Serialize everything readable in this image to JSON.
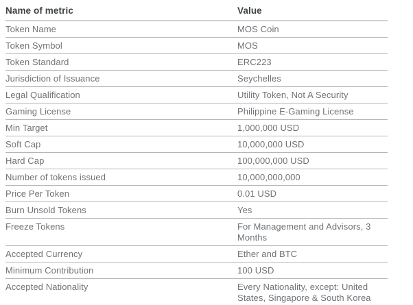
{
  "table": {
    "columns": [
      {
        "label": "Name of metric"
      },
      {
        "label": "Value"
      }
    ],
    "rows": [
      {
        "metric": "Token Name",
        "value": "MOS Coin"
      },
      {
        "metric": "Token Symbol",
        "value": "MOS"
      },
      {
        "metric": "Token Standard",
        "value": "ERC223"
      },
      {
        "metric": "Jurisdiction of Issuance",
        "value": "Seychelles"
      },
      {
        "metric": "Legal Qualification",
        "value": "Utility Token, Not A Security"
      },
      {
        "metric": "Gaming License",
        "value": "Philippine E-Gaming License"
      },
      {
        "metric": "Min Target",
        "value": "1,000,000 USD"
      },
      {
        "metric": "Soft Cap",
        "value": "10,000,000 USD"
      },
      {
        "metric": "Hard Cap",
        "value": "100,000,000 USD"
      },
      {
        "metric": "Number of tokens issued",
        "value": "10,000,000,000"
      },
      {
        "metric": "Price Per Token",
        "value": "0.01 USD"
      },
      {
        "metric": "Burn Unsold Tokens",
        "value": "Yes"
      },
      {
        "metric": "Freeze Tokens",
        "value": "For Management and Advisors, 3 Months"
      },
      {
        "metric": "Accepted Currency",
        "value": "Ether and BTC"
      },
      {
        "metric": "Minimum Contribution",
        "value": "100 USD"
      },
      {
        "metric": "Accepted Nationality",
        "value": "Every Nationality, except: United States, Singapore & South Korea"
      }
    ]
  },
  "theme": {
    "background": "#ffffff",
    "header_text_color": "#3e4245",
    "body_text_color": "#6f7377",
    "header_border_color": "#8d9093",
    "row_border_color": "#b3b5b7"
  }
}
